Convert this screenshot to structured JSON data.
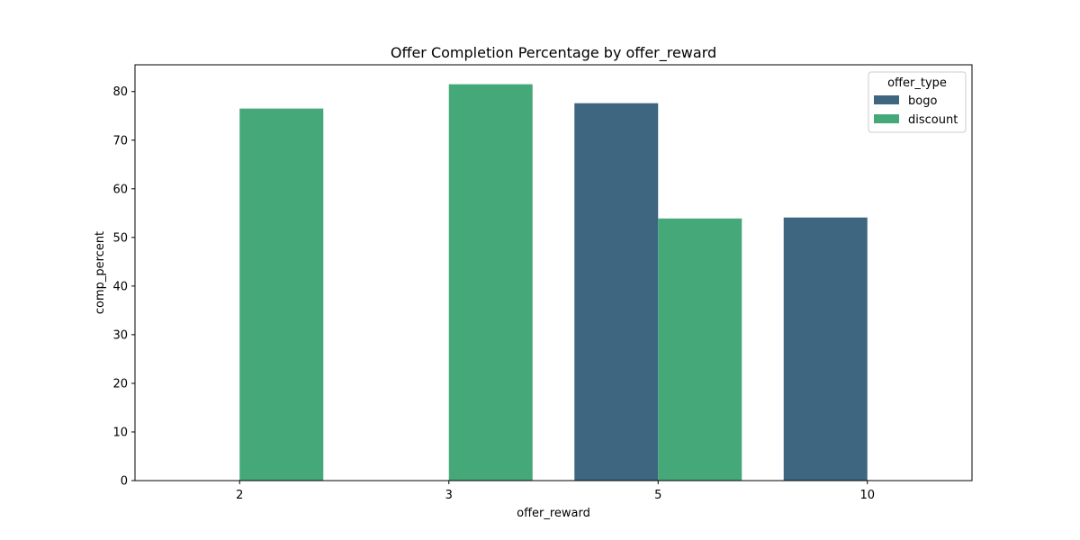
{
  "chart_data": {
    "type": "bar",
    "title": "Offer Completion Percentage by offer_reward",
    "xlabel": "offer_reward",
    "ylabel": "comp_percent",
    "categories": [
      "2",
      "3",
      "5",
      "10"
    ],
    "series": [
      {
        "name": "bogo",
        "color": "#3e6680",
        "values": [
          null,
          null,
          77.6,
          54.1
        ]
      },
      {
        "name": "discount",
        "color": "#45a878",
        "values": [
          76.5,
          81.5,
          53.9,
          null
        ]
      }
    ],
    "ylim": [
      0,
      85.5
    ],
    "yticks": [
      0,
      10,
      20,
      30,
      40,
      50,
      60,
      70,
      80
    ],
    "grid": false,
    "legend": {
      "title": "offer_type",
      "placement": "top-right"
    }
  }
}
